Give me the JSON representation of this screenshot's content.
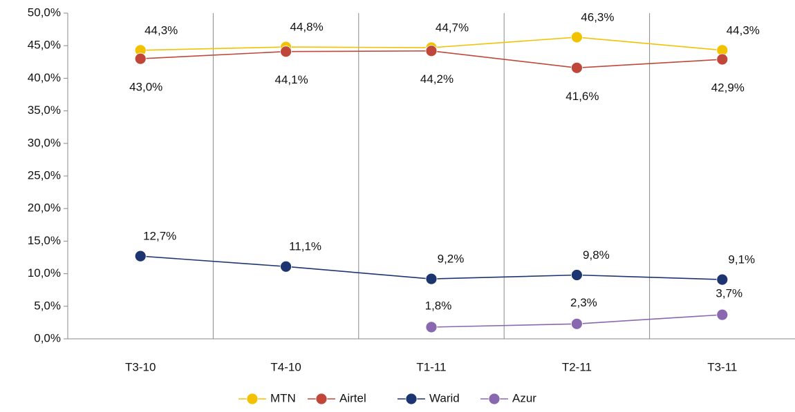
{
  "chart_data": {
    "type": "line",
    "categories": [
      "T3-10",
      "T4-10",
      "T1-11",
      "T2-11",
      "T3-11"
    ],
    "series": [
      {
        "name": "MTN",
        "color": "#f2c200",
        "values": [
          44.3,
          44.8,
          44.7,
          46.3,
          44.3
        ],
        "value_labels": [
          "44,3%",
          "44,8%",
          "44,7%",
          "46,3%",
          "44,3%"
        ]
      },
      {
        "name": "Airtel",
        "color": "#c0463a",
        "values": [
          43.0,
          44.1,
          44.2,
          41.6,
          42.9
        ],
        "value_labels": [
          "43,0%",
          "44,1%",
          "44,2%",
          "41,6%",
          "42,9%"
        ]
      },
      {
        "name": "Warid",
        "color": "#1c3570",
        "values": [
          12.7,
          11.1,
          9.2,
          9.8,
          9.1
        ],
        "value_labels": [
          "12,7%",
          "11,1%",
          "9,2%",
          "9,8%",
          "9,1%"
        ]
      },
      {
        "name": "Azur",
        "color": "#8a68b0",
        "values": [
          null,
          null,
          1.8,
          2.3,
          3.7
        ],
        "value_labels": [
          null,
          null,
          "1,8%",
          "2,3%",
          "3,7%"
        ]
      }
    ],
    "ylim": [
      0,
      50
    ],
    "yticks": [
      {
        "value": 0,
        "label": "0,0%"
      },
      {
        "value": 5,
        "label": "5,0%"
      },
      {
        "value": 10,
        "label": "10,0%"
      },
      {
        "value": 15,
        "label": "15,0%"
      },
      {
        "value": 20,
        "label": "20,0%"
      },
      {
        "value": 25,
        "label": "25,0%"
      },
      {
        "value": 30,
        "label": "30,0%"
      },
      {
        "value": 35,
        "label": "35,0%"
      },
      {
        "value": 40,
        "label": "40,0%"
      },
      {
        "value": 45,
        "label": "45,0%"
      },
      {
        "value": 50,
        "label": "50,0%"
      }
    ],
    "legend": "bottom"
  }
}
